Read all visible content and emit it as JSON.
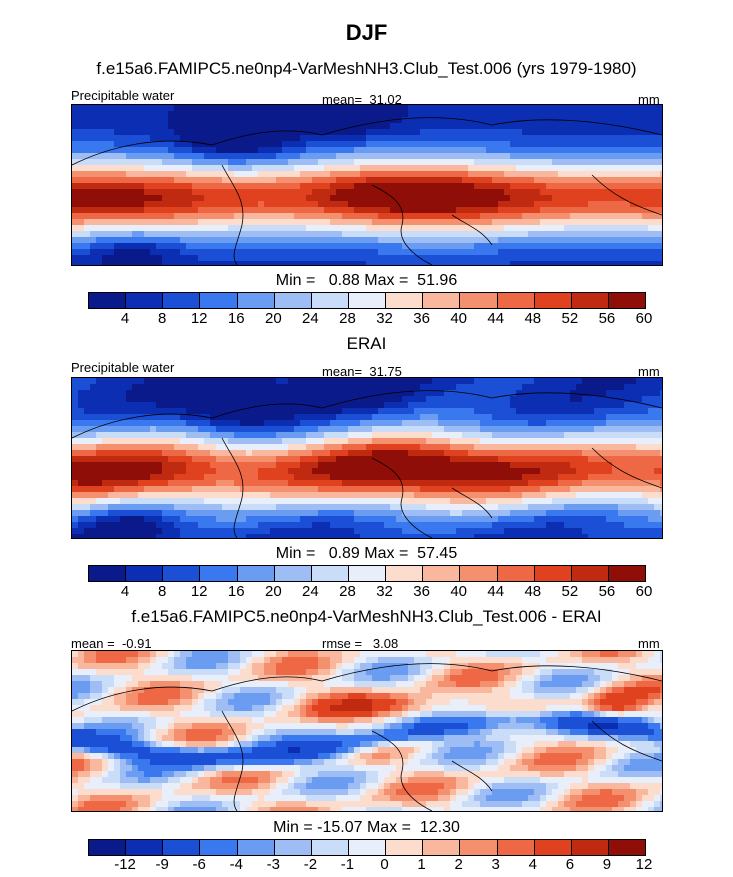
{
  "figure": {
    "title": "DJF"
  },
  "panels": [
    {
      "subtitle": "f.e15a6.FAMIPC5.ne0np4-VarMeshNH3.Club_Test.006 (yrs 1979-1980)",
      "left_label": "Precipitable water",
      "center_label": "mean=  31.02",
      "right_label": "mm",
      "stats": "Min =   0.88 Max =  51.96",
      "colorbar": {
        "colors": [
          "#0a1a8a",
          "#0b2eb3",
          "#1a4fd6",
          "#3a78ef",
          "#6a9cf2",
          "#9ebdf4",
          "#c9dcf8",
          "#e8eefa",
          "#fbdccd",
          "#f9b89e",
          "#f5906f",
          "#ee6845",
          "#e0421f",
          "#c02a10",
          "#8f0e07"
        ],
        "ticks": [
          "4",
          "8",
          "12",
          "16",
          "20",
          "24",
          "28",
          "32",
          "36",
          "40",
          "44",
          "48",
          "52",
          "56",
          "60"
        ]
      },
      "field": "model"
    },
    {
      "subtitle": "ERAI",
      "left_label": "Precipitable water",
      "center_label": "mean=  31.75",
      "right_label": "mm",
      "stats": "Min =   0.89 Max =  57.45",
      "colorbar": {
        "colors": [
          "#0a1a8a",
          "#0b2eb3",
          "#1a4fd6",
          "#3a78ef",
          "#6a9cf2",
          "#9ebdf4",
          "#c9dcf8",
          "#e8eefa",
          "#fbdccd",
          "#f9b89e",
          "#f5906f",
          "#ee6845",
          "#e0421f",
          "#c02a10",
          "#8f0e07"
        ],
        "ticks": [
          "4",
          "8",
          "12",
          "16",
          "20",
          "24",
          "28",
          "32",
          "36",
          "40",
          "44",
          "48",
          "52",
          "56",
          "60"
        ]
      },
      "field": "obs"
    },
    {
      "subtitle": "f.e15a6.FAMIPC5.ne0np4-VarMeshNH3.Club_Test.006 - ERAI",
      "left_label": "mean =  -0.91",
      "center_label": "rmse =   3.08",
      "right_label": "mm",
      "stats": "Min = -15.07 Max =  12.30",
      "colorbar": {
        "colors": [
          "#0a1a8a",
          "#0b2eb3",
          "#1a4fd6",
          "#3a78ef",
          "#6a9cf2",
          "#9ebdf4",
          "#c9dcf8",
          "#e8eefa",
          "#fbdccd",
          "#f9b89e",
          "#f5906f",
          "#ee6845",
          "#e0421f",
          "#c02a10",
          "#8f0e07"
        ],
        "ticks": [
          "-12",
          "-9",
          "-6",
          "-4",
          "-3",
          "-2",
          "-1",
          "0",
          "1",
          "2",
          "3",
          "4",
          "6",
          "9",
          "12"
        ]
      },
      "field": "diff"
    }
  ]
}
